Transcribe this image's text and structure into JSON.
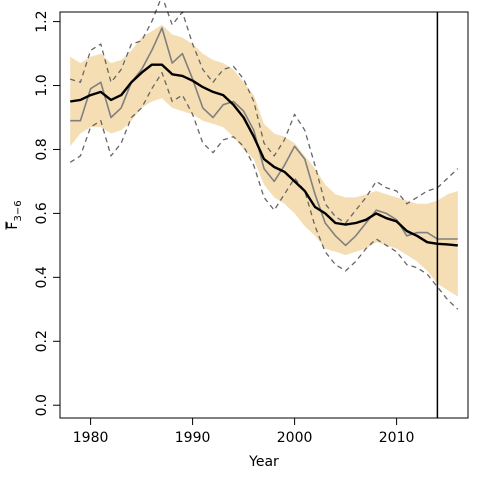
{
  "chart_data": {
    "type": "line",
    "xlabel": "Year",
    "ylabel": "F",
    "ylabel_sub": "3−6",
    "xlim": [
      1977,
      2017
    ],
    "ylim": [
      -0.04,
      1.23
    ],
    "x_ticks": [
      1980,
      1990,
      2000,
      2010
    ],
    "x_tick_labels": [
      "1980",
      "1990",
      "2000",
      "2010"
    ],
    "y_ticks": [
      0.0,
      0.2,
      0.4,
      0.6,
      0.8,
      1.0,
      1.2
    ],
    "y_tick_labels": [
      "0.0",
      "0.2",
      "0.4",
      "0.6",
      "0.8",
      "1.0",
      "1.2"
    ],
    "vline_x": 2014,
    "colors": {
      "band": "#f5deb3",
      "estimate": "#000000",
      "observed": "#808080",
      "bounds": "#666666",
      "vline": "#000000"
    },
    "x": [
      1978,
      1979,
      1980,
      1981,
      1982,
      1983,
      1984,
      1985,
      1986,
      1987,
      1988,
      1989,
      1990,
      1991,
      1992,
      1993,
      1994,
      1995,
      1996,
      1997,
      1998,
      1999,
      2000,
      2001,
      2002,
      2003,
      2004,
      2005,
      2006,
      2007,
      2008,
      2009,
      2010,
      2011,
      2012,
      2013,
      2014,
      2015,
      2016
    ],
    "series": [
      {
        "role": "band_upper",
        "values": [
          1.09,
          1.07,
          1.09,
          1.1,
          1.07,
          1.08,
          1.11,
          1.15,
          1.17,
          1.19,
          1.16,
          1.15,
          1.13,
          1.1,
          1.08,
          1.07,
          1.05,
          1.01,
          0.97,
          0.88,
          0.85,
          0.84,
          0.82,
          0.78,
          0.74,
          0.69,
          0.66,
          0.65,
          0.65,
          0.66,
          0.67,
          0.66,
          0.65,
          0.64,
          0.63,
          0.63,
          0.64,
          0.66,
          0.67
        ]
      },
      {
        "role": "band_lower",
        "values": [
          0.81,
          0.85,
          0.87,
          0.87,
          0.85,
          0.86,
          0.89,
          0.93,
          0.95,
          0.96,
          0.93,
          0.92,
          0.91,
          0.89,
          0.88,
          0.87,
          0.84,
          0.8,
          0.77,
          0.69,
          0.65,
          0.63,
          0.6,
          0.56,
          0.53,
          0.49,
          0.48,
          0.47,
          0.48,
          0.49,
          0.51,
          0.5,
          0.49,
          0.47,
          0.45,
          0.42,
          0.38,
          0.36,
          0.34
        ]
      },
      {
        "role": "estimate",
        "values": [
          0.95,
          0.955,
          0.97,
          0.98,
          0.955,
          0.97,
          1.01,
          1.04,
          1.065,
          1.065,
          1.035,
          1.03,
          1.015,
          0.995,
          0.98,
          0.97,
          0.94,
          0.9,
          0.84,
          0.77,
          0.745,
          0.73,
          0.7,
          0.67,
          0.62,
          0.6,
          0.57,
          0.565,
          0.57,
          0.58,
          0.6,
          0.585,
          0.575,
          0.545,
          0.53,
          0.51,
          0.505,
          0.503,
          0.5
        ]
      },
      {
        "role": "observed",
        "values": [
          0.89,
          0.89,
          0.99,
          1.01,
          0.9,
          0.93,
          1.01,
          1.05,
          1.11,
          1.18,
          1.07,
          1.1,
          1.02,
          0.93,
          0.9,
          0.94,
          0.95,
          0.92,
          0.86,
          0.74,
          0.7,
          0.75,
          0.81,
          0.77,
          0.66,
          0.57,
          0.53,
          0.5,
          0.53,
          0.57,
          0.61,
          0.6,
          0.58,
          0.53,
          0.54,
          0.54,
          0.52,
          0.52,
          0.52
        ]
      },
      {
        "role": "upper_bound",
        "values": [
          1.02,
          1.01,
          1.11,
          1.13,
          1.01,
          1.05,
          1.13,
          1.14,
          1.2,
          1.28,
          1.19,
          1.23,
          1.13,
          1.05,
          1.01,
          1.05,
          1.06,
          1.02,
          0.95,
          0.82,
          0.78,
          0.83,
          0.91,
          0.86,
          0.75,
          0.63,
          0.59,
          0.57,
          0.61,
          0.65,
          0.7,
          0.68,
          0.67,
          0.63,
          0.65,
          0.67,
          0.68,
          0.71,
          0.74
        ]
      },
      {
        "role": "lower_bound",
        "values": [
          0.76,
          0.78,
          0.87,
          0.89,
          0.78,
          0.82,
          0.9,
          0.93,
          0.99,
          1.04,
          0.95,
          0.97,
          0.91,
          0.82,
          0.79,
          0.83,
          0.84,
          0.81,
          0.75,
          0.65,
          0.61,
          0.66,
          0.71,
          0.67,
          0.56,
          0.48,
          0.44,
          0.42,
          0.45,
          0.49,
          0.52,
          0.5,
          0.48,
          0.44,
          0.43,
          0.41,
          0.37,
          0.33,
          0.3
        ]
      }
    ]
  }
}
